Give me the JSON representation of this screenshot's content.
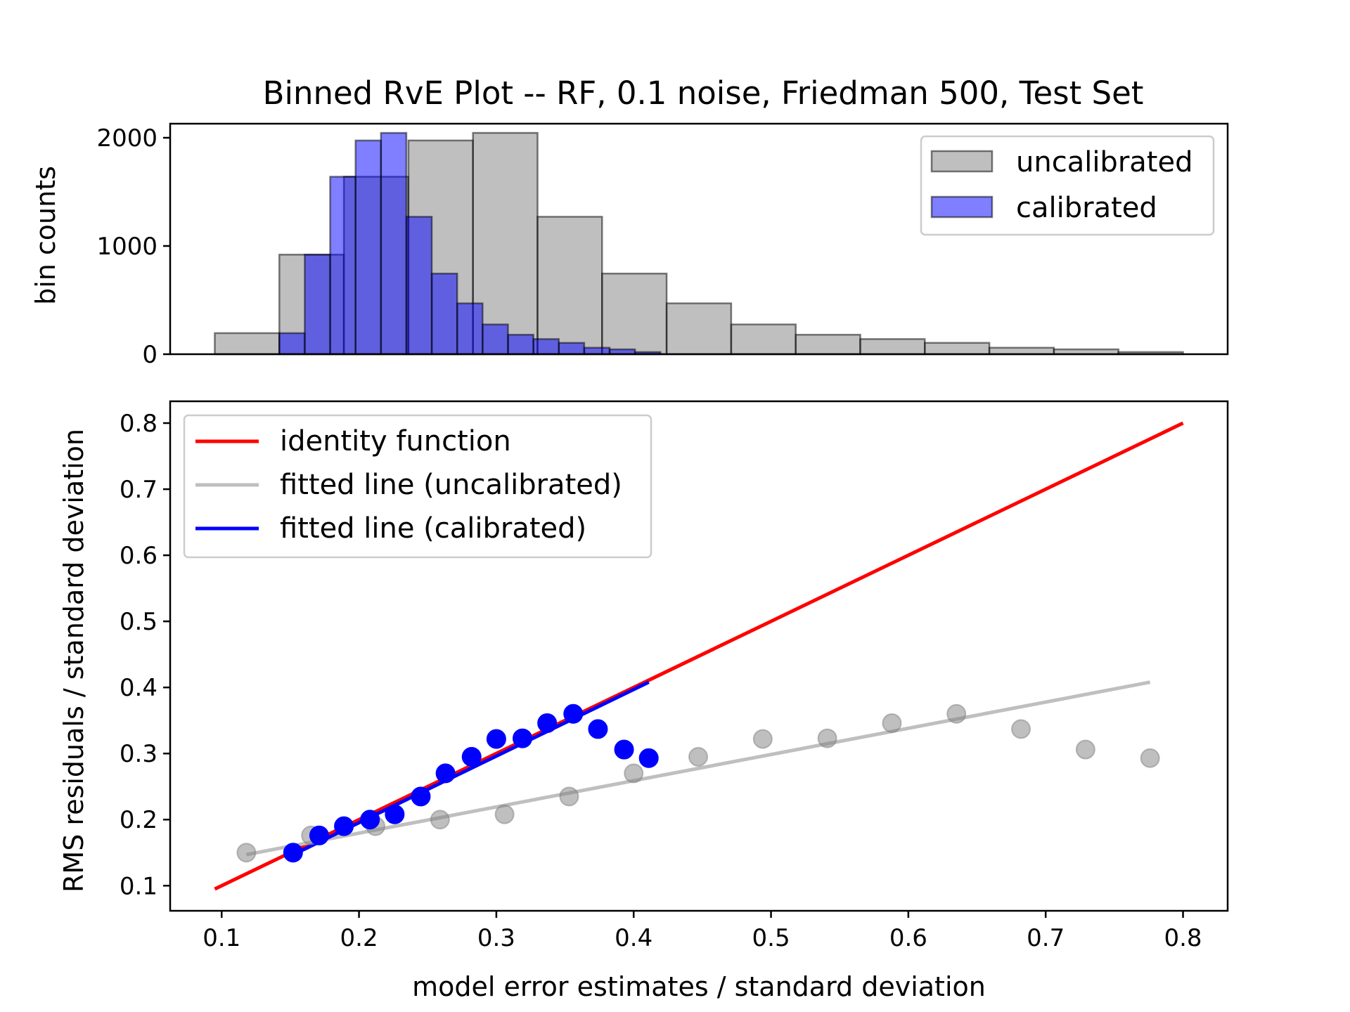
{
  "chart_data": [
    {
      "type": "bar",
      "panel": "top",
      "title": "Binned RvE Plot -- RF, 0.1 noise, Friedman 500, Test Set",
      "xlabel": "",
      "ylabel": "bin counts",
      "xlim": [
        0.0625,
        0.8325
      ],
      "ylim": [
        0,
        2130
      ],
      "yticks": [
        0,
        1000,
        2000
      ],
      "ytick_labels": [
        "0",
        "1000",
        "2000"
      ],
      "grid": false,
      "legend_position": "top-right",
      "series": [
        {
          "name": "uncalibrated",
          "color": "#808080",
          "opacity": 0.5,
          "bin_edges": [
            0.095,
            0.142,
            0.189,
            0.236,
            0.283,
            0.33,
            0.377,
            0.424,
            0.471,
            0.518,
            0.565,
            0.612,
            0.659,
            0.706,
            0.753,
            0.8
          ],
          "values": [
            195,
            920,
            1640,
            1975,
            2045,
            1270,
            745,
            470,
            275,
            180,
            140,
            105,
            60,
            45,
            20
          ]
        },
        {
          "name": "calibrated",
          "color": "#0000ff",
          "opacity": 0.5,
          "bin_edges": [
            0.142,
            0.1605,
            0.179,
            0.1975,
            0.216,
            0.2345,
            0.253,
            0.2715,
            0.29,
            0.3085,
            0.327,
            0.3455,
            0.364,
            0.3825,
            0.401,
            0.4195
          ],
          "values": [
            195,
            920,
            1640,
            1975,
            2045,
            1270,
            745,
            470,
            275,
            180,
            140,
            105,
            60,
            45,
            20
          ]
        }
      ]
    },
    {
      "type": "scatter",
      "panel": "bottom",
      "title": "",
      "xlabel": "model error estimates / standard deviation",
      "ylabel": "RMS residuals / standard deviation",
      "xlim": [
        0.0625,
        0.8325
      ],
      "ylim": [
        0.062,
        0.833
      ],
      "xticks": [
        0.1,
        0.2,
        0.3,
        0.4,
        0.5,
        0.6,
        0.7,
        0.8
      ],
      "xtick_labels": [
        "0.1",
        "0.2",
        "0.3",
        "0.4",
        "0.5",
        "0.6",
        "0.7",
        "0.8"
      ],
      "yticks": [
        0.1,
        0.2,
        0.3,
        0.4,
        0.5,
        0.6,
        0.7,
        0.8
      ],
      "ytick_labels": [
        "0.1",
        "0.2",
        "0.3",
        "0.4",
        "0.5",
        "0.6",
        "0.7",
        "0.8"
      ],
      "grid": false,
      "legend_position": "top-left",
      "lines": [
        {
          "name": "identity function",
          "color": "#ff0000",
          "x": [
            0.095,
            0.8
          ],
          "y": [
            0.095,
            0.8
          ]
        },
        {
          "name": "fitted line (uncalibrated)",
          "color": "#bfbfbf",
          "x": [
            0.118,
            0.776
          ],
          "y": [
            0.147,
            0.408
          ]
        },
        {
          "name": "fitted line (calibrated)",
          "color": "#0000ff",
          "x": [
            0.152,
            0.411
          ],
          "y": [
            0.147,
            0.408
          ]
        }
      ],
      "scatter_series": [
        {
          "color": "#808080",
          "opacity": 0.5,
          "x": [
            0.118,
            0.165,
            0.212,
            0.259,
            0.306,
            0.353,
            0.4,
            0.447,
            0.494,
            0.541,
            0.588,
            0.635,
            0.682,
            0.729,
            0.776
          ],
          "y": [
            0.15,
            0.176,
            0.19,
            0.2,
            0.208,
            0.235,
            0.27,
            0.295,
            0.322,
            0.323,
            0.346,
            0.36,
            0.337,
            0.306,
            0.293
          ]
        },
        {
          "color": "#0000ff",
          "opacity": 1,
          "x": [
            0.152,
            0.171,
            0.189,
            0.208,
            0.226,
            0.245,
            0.263,
            0.282,
            0.3,
            0.319,
            0.337,
            0.356,
            0.374,
            0.393,
            0.411
          ],
          "y": [
            0.15,
            0.176,
            0.19,
            0.2,
            0.208,
            0.235,
            0.27,
            0.295,
            0.322,
            0.323,
            0.346,
            0.36,
            0.337,
            0.306,
            0.293
          ]
        }
      ]
    }
  ]
}
